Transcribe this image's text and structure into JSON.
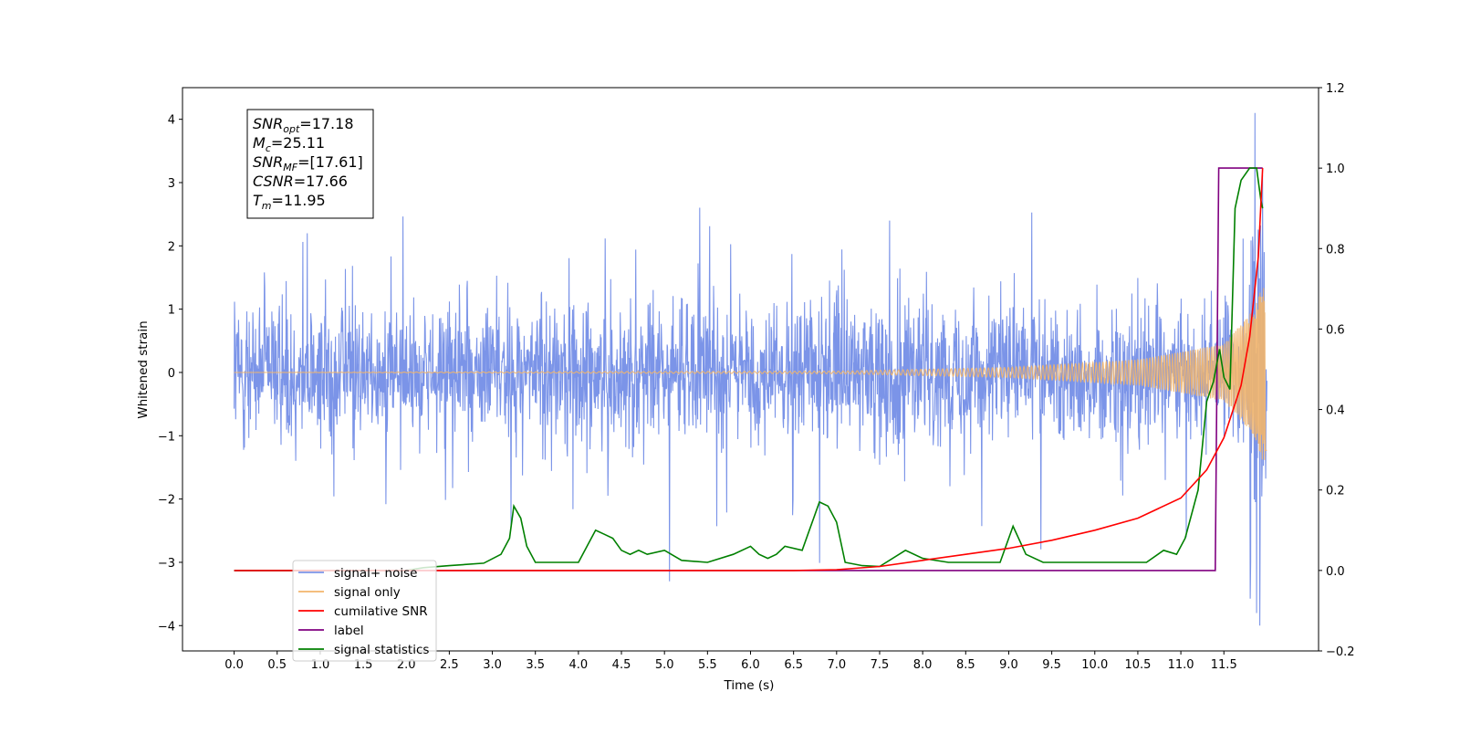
{
  "chart_data": {
    "type": "line",
    "xlabel": "Time (s)",
    "ylabel": "Whitened strain",
    "xlim": [
      -0.6,
      12.6
    ],
    "ylim": [
      -4.4,
      4.5
    ],
    "y2lim": [
      -0.2,
      1.2
    ],
    "x_ticks": [
      "0.0",
      "0.5",
      "1.0",
      "1.5",
      "2.0",
      "2.5",
      "3.0",
      "3.5",
      "4.0",
      "4.5",
      "5.0",
      "5.5",
      "6.0",
      "6.5",
      "7.0",
      "7.5",
      "8.0",
      "8.5",
      "9.0",
      "9.5",
      "10.0",
      "10.5",
      "11.0",
      "11.5"
    ],
    "y_ticks": [
      "4",
      "3",
      "2",
      "1",
      "0",
      "−1",
      "−2",
      "−3",
      "−4"
    ],
    "y2_ticks": [
      "1.2",
      "1.0",
      "0.8",
      "0.6",
      "0.4",
      "0.2",
      "0.0",
      "−0.2"
    ],
    "grid": false,
    "legend_location": "lower-left",
    "annotation": {
      "lines": [
        {
          "base": "SNR",
          "sub": "opt",
          "rest": "=17.18"
        },
        {
          "base": "M",
          "sub": "c",
          "rest": "=25.11"
        },
        {
          "base": "SNR",
          "sub": "MF",
          "rest": "=[17.61]"
        },
        {
          "base": "CSNR",
          "sub": "",
          "rest": "=17.66"
        },
        {
          "base": "T",
          "sub": "m",
          "rest": "=11.95"
        }
      ]
    },
    "series": [
      {
        "name": "signal+ noise",
        "color": "#7b94e8",
        "axis": "left",
        "kind": "noise",
        "t_range": [
          0.0,
          12.0
        ],
        "envelope_typical": 1.8,
        "peak": 4.1,
        "min": -4.0
      },
      {
        "name": "signal only",
        "color": "#f2b56b",
        "axis": "left",
        "kind": "chirp",
        "t_range": [
          0.0,
          12.0
        ],
        "amplitude_at": [
          [
            0.0,
            0.0
          ],
          [
            7.0,
            0.02
          ],
          [
            9.0,
            0.08
          ],
          [
            10.5,
            0.2
          ],
          [
            11.5,
            0.45
          ],
          [
            11.85,
            1.0
          ],
          [
            11.95,
            1.4
          ]
        ]
      },
      {
        "name": "cumilative SNR",
        "color": "#ff0000",
        "axis": "right",
        "x": [
          0.0,
          6.5,
          7.0,
          7.5,
          8.0,
          8.5,
          9.0,
          9.5,
          10.0,
          10.5,
          11.0,
          11.3,
          11.5,
          11.7,
          11.8,
          11.9,
          11.95
        ],
        "y": [
          0.0,
          0.0,
          0.002,
          0.01,
          0.025,
          0.04,
          0.055,
          0.075,
          0.1,
          0.13,
          0.18,
          0.25,
          0.33,
          0.46,
          0.58,
          0.78,
          1.0
        ]
      },
      {
        "name": "label",
        "color": "#800080",
        "axis": "right",
        "x": [
          0.0,
          11.4,
          11.44,
          11.95
        ],
        "y": [
          0.0,
          0.0,
          1.0,
          1.0
        ]
      },
      {
        "name": "signal statistics",
        "color": "#008000",
        "axis": "right",
        "x": [
          0.0,
          2.0,
          2.2,
          2.5,
          2.9,
          3.1,
          3.2,
          3.25,
          3.33,
          3.4,
          3.5,
          3.7,
          4.0,
          4.1,
          4.2,
          4.3,
          4.4,
          4.5,
          4.6,
          4.7,
          4.8,
          5.0,
          5.2,
          5.5,
          5.8,
          6.0,
          6.1,
          6.2,
          6.3,
          6.4,
          6.6,
          6.8,
          6.9,
          7.0,
          7.1,
          7.3,
          7.5,
          7.8,
          8.0,
          8.3,
          8.6,
          8.9,
          9.05,
          9.2,
          9.4,
          9.8,
          10.2,
          10.6,
          10.8,
          10.95,
          11.05,
          11.2,
          11.3,
          11.38,
          11.45,
          11.5,
          11.57,
          11.63,
          11.7,
          11.8,
          11.88,
          11.93,
          11.95
        ],
        "y": [
          0.0,
          0.0,
          0.007,
          0.012,
          0.018,
          0.04,
          0.08,
          0.16,
          0.13,
          0.06,
          0.02,
          0.02,
          0.02,
          0.06,
          0.1,
          0.09,
          0.08,
          0.05,
          0.04,
          0.05,
          0.04,
          0.05,
          0.025,
          0.02,
          0.04,
          0.06,
          0.04,
          0.03,
          0.04,
          0.06,
          0.05,
          0.17,
          0.16,
          0.12,
          0.02,
          0.012,
          0.01,
          0.05,
          0.03,
          0.02,
          0.02,
          0.02,
          0.11,
          0.04,
          0.02,
          0.02,
          0.02,
          0.02,
          0.05,
          0.04,
          0.08,
          0.2,
          0.42,
          0.47,
          0.55,
          0.48,
          0.45,
          0.9,
          0.97,
          1.0,
          1.0,
          0.92,
          0.9
        ]
      }
    ]
  }
}
